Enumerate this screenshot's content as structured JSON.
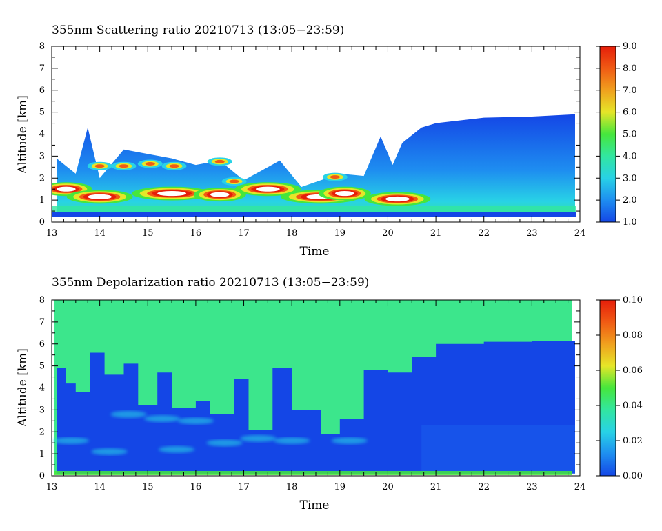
{
  "chart_data": [
    {
      "type": "heatmap",
      "title": "355nm Scattering ratio  20210713 (13:05−23:59)",
      "xlabel": "Time",
      "ylabel": "Altitude [km]",
      "xlim": [
        13,
        24
      ],
      "ylim": [
        0,
        8
      ],
      "x_ticks": [
        "13",
        "14",
        "15",
        "16",
        "17",
        "18",
        "19",
        "20",
        "21",
        "22",
        "23",
        "24"
      ],
      "y_ticks": [
        "0",
        "1",
        "2",
        "3",
        "4",
        "5",
        "6",
        "7",
        "8"
      ],
      "colorbar": {
        "range": [
          1.0,
          9.0
        ],
        "tick_labels": [
          "1.0",
          "2.0",
          "3.0",
          "4.0",
          "5.0",
          "6.0",
          "7.0",
          "8.0",
          "9.0"
        ],
        "colors": [
          "#1446e6",
          "#1e8ef0",
          "#28d2e6",
          "#32e6a0",
          "#46e63c",
          "#e6e628",
          "#f0a01e",
          "#f05a14",
          "#e61e0a"
        ]
      },
      "layer_top_km": [
        {
          "time": 13.1,
          "top": 2.9
        },
        {
          "time": 13.5,
          "top": 2.2
        },
        {
          "time": 13.75,
          "top": 4.3
        },
        {
          "time": 14.0,
          "top": 2.0
        },
        {
          "time": 14.5,
          "top": 3.3
        },
        {
          "time": 15.0,
          "top": 3.1
        },
        {
          "time": 15.5,
          "top": 2.9
        },
        {
          "time": 16.0,
          "top": 2.6
        },
        {
          "time": 16.5,
          "top": 2.8
        },
        {
          "time": 17.0,
          "top": 1.9
        },
        {
          "time": 17.75,
          "top": 2.8
        },
        {
          "time": 18.2,
          "top": 1.6
        },
        {
          "time": 19.0,
          "top": 2.2
        },
        {
          "time": 19.5,
          "top": 2.1
        },
        {
          "time": 19.85,
          "top": 3.9
        },
        {
          "time": 20.1,
          "top": 2.6
        },
        {
          "time": 20.3,
          "top": 3.6
        },
        {
          "time": 20.7,
          "top": 4.3
        },
        {
          "time": 21.0,
          "top": 4.5
        },
        {
          "time": 22.0,
          "top": 4.75
        },
        {
          "time": 23.0,
          "top": 4.8
        },
        {
          "time": 23.9,
          "top": 4.9
        }
      ],
      "high_ratio_features": [
        {
          "time": 13.3,
          "altitude": 1.5,
          "value": 9.0
        },
        {
          "time": 14.0,
          "altitude": 1.15,
          "value": 9.0
        },
        {
          "time": 15.5,
          "altitude": 1.3,
          "value": 9.0
        },
        {
          "time": 16.5,
          "altitude": 1.25,
          "value": 9.0
        },
        {
          "time": 17.5,
          "altitude": 1.5,
          "value": 9.0
        },
        {
          "time": 18.6,
          "altitude": 1.15,
          "value": 9.0
        },
        {
          "time": 19.1,
          "altitude": 1.3,
          "value": 9.0
        },
        {
          "time": 20.2,
          "altitude": 1.05,
          "value": 9.0
        }
      ]
    },
    {
      "type": "heatmap",
      "title": "355nm Depolarization ratio  20210713 (13:05−23:59)",
      "xlabel": "Time",
      "ylabel": "Altitude [km]",
      "xlim": [
        13,
        24
      ],
      "ylim": [
        0,
        8
      ],
      "x_ticks": [
        "13",
        "14",
        "15",
        "16",
        "17",
        "18",
        "19",
        "20",
        "21",
        "22",
        "23",
        "24"
      ],
      "y_ticks": [
        "0",
        "1",
        "2",
        "3",
        "4",
        "5",
        "6",
        "7",
        "8"
      ],
      "colorbar": {
        "range": [
          0.0,
          0.1
        ],
        "tick_labels": [
          "0.00",
          "0.02",
          "0.04",
          "0.06",
          "0.08",
          "0.10"
        ],
        "colors": [
          "#1446e6",
          "#1e8ef0",
          "#28d2e6",
          "#32e6a0",
          "#46e63c",
          "#e6e628",
          "#f0a01e",
          "#f05a14",
          "#e61e0a"
        ]
      },
      "background_value": 0.04,
      "low_depol_top_km": [
        {
          "time": 13.1,
          "top": 4.9
        },
        {
          "time": 13.3,
          "top": 4.2
        },
        {
          "time": 13.5,
          "top": 3.8
        },
        {
          "time": 13.8,
          "top": 5.6
        },
        {
          "time": 14.1,
          "top": 4.6
        },
        {
          "time": 14.5,
          "top": 5.1
        },
        {
          "time": 14.8,
          "top": 3.2
        },
        {
          "time": 15.2,
          "top": 4.7
        },
        {
          "time": 15.5,
          "top": 3.1
        },
        {
          "time": 16.0,
          "top": 3.4
        },
        {
          "time": 16.3,
          "top": 2.8
        },
        {
          "time": 16.8,
          "top": 4.4
        },
        {
          "time": 17.1,
          "top": 2.1
        },
        {
          "time": 17.6,
          "top": 4.9
        },
        {
          "time": 18.0,
          "top": 3.0
        },
        {
          "time": 18.6,
          "top": 1.9
        },
        {
          "time": 19.0,
          "top": 2.6
        },
        {
          "time": 19.5,
          "top": 4.8
        },
        {
          "time": 20.0,
          "top": 4.7
        },
        {
          "time": 20.5,
          "top": 5.4
        },
        {
          "time": 21.0,
          "top": 6.0
        },
        {
          "time": 22.0,
          "top": 6.1
        },
        {
          "time": 23.0,
          "top": 6.15
        },
        {
          "time": 23.9,
          "top": 6.3
        }
      ]
    }
  ]
}
